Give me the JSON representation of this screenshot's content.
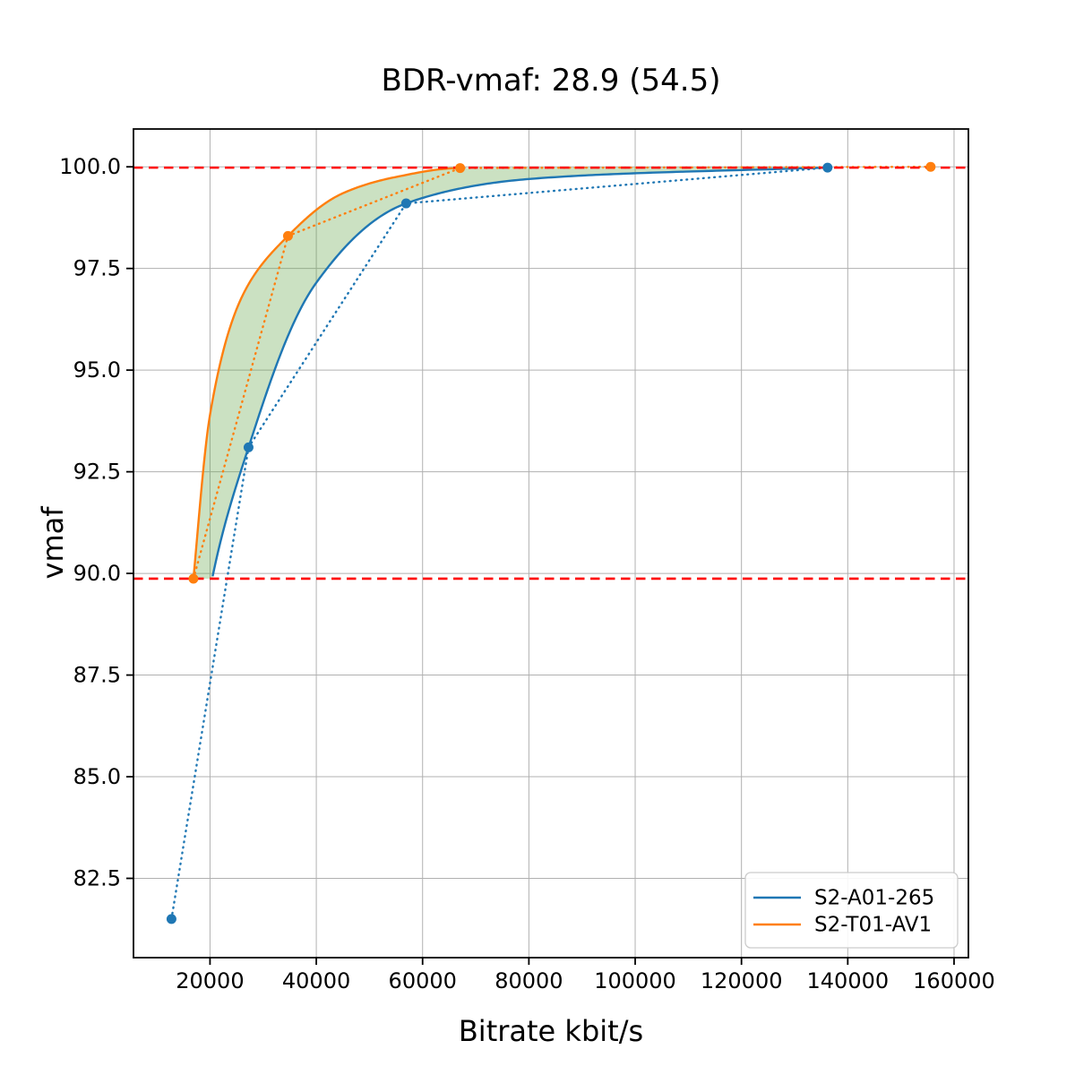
{
  "chart_data": {
    "type": "line",
    "title": "BDR-vmaf: 28.9 (54.5)",
    "xlabel": "Bitrate kbit/s",
    "ylabel": "vmaf",
    "xlim": [
      5600,
      162700
    ],
    "ylim": [
      80.55,
      100.93
    ],
    "xticks": [
      20000,
      40000,
      60000,
      80000,
      100000,
      120000,
      140000,
      160000
    ],
    "yticks": [
      82.5,
      85.0,
      87.5,
      90.0,
      92.5,
      95.0,
      97.5,
      100.0
    ],
    "grid": true,
    "grid_color": "#b0b0b0",
    "legend_position": "lower right",
    "series": [
      {
        "name": "S2-A01-265",
        "color": "#1f77b4",
        "points": [
          [
            12750,
            81.5
          ],
          [
            27250,
            93.1
          ],
          [
            56900,
            99.1
          ],
          [
            136200,
            99.98
          ]
        ],
        "curve_hints": [
          [
            20000,
            89.6
          ],
          [
            40000,
            97.15
          ],
          [
            80000,
            99.7
          ]
        ],
        "solid_range": [
          20500,
          136200
        ]
      },
      {
        "name": "S2-T01-AV1",
        "color": "#ff7f0e",
        "points": [
          [
            16880,
            89.87
          ],
          [
            34670,
            98.3
          ],
          [
            67060,
            99.97
          ],
          [
            155600,
            100.0
          ]
        ],
        "curve_hints": [
          [
            20000,
            93.9
          ],
          [
            26000,
            96.8
          ],
          [
            45000,
            99.35
          ],
          [
            55000,
            99.75
          ]
        ],
        "solid_range": [
          16880,
          67060
        ]
      }
    ],
    "reference_lines": {
      "lower": 89.87,
      "upper": 99.98,
      "color": "#ff0000",
      "style": "dashed"
    },
    "fill_between": {
      "color": "#6aa84f",
      "opacity": 0.35,
      "x_range": [
        16880,
        136200
      ]
    }
  }
}
